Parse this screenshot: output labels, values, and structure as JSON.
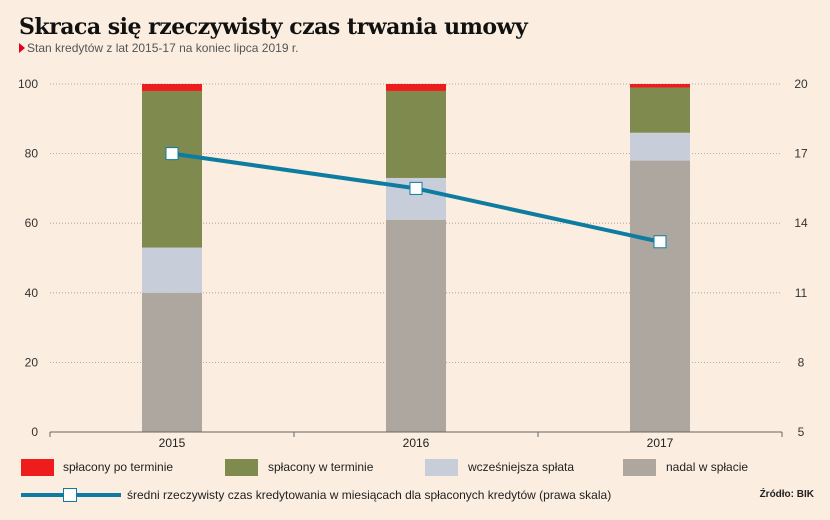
{
  "title": "Skraca się rzeczywisty czas trwania umowy",
  "subtitle": "Stan kredytów z lat 2015-17 na koniec lipca 2019 r.",
  "source": "Źródło: BIK",
  "chart_data": {
    "type": "bar",
    "stacked": true,
    "categories": [
      "2015",
      "2016",
      "2017"
    ],
    "series": [
      {
        "name": "nadal w spłacie",
        "color": "#aea79f",
        "values": [
          40,
          61,
          78
        ]
      },
      {
        "name": "wcześniejsza spłata",
        "color": "#c7cdd9",
        "values": [
          13,
          12,
          8
        ]
      },
      {
        "name": "spłacony w terminie",
        "color": "#7f8a4f",
        "values": [
          45,
          25,
          13
        ]
      },
      {
        "name": "spłacony po terminie",
        "color": "#ee1c1c",
        "values": [
          2,
          2,
          1
        ]
      }
    ],
    "line_series": {
      "name": "średni rzeczywisty czas kredytowania w miesiącach dla spłaconych kredytów (prawa skala)",
      "color": "#0e7ca1",
      "axis": "right",
      "values": [
        17.0,
        15.5,
        13.2
      ]
    },
    "ylim": [
      0,
      100
    ],
    "y_ticks": [
      0,
      20,
      40,
      60,
      80,
      100
    ],
    "y2lim": [
      5,
      20
    ],
    "y2_ticks": [
      "5",
      "8",
      "11",
      "14",
      "17",
      "20"
    ],
    "grid": true
  },
  "legend": {
    "row1": [
      {
        "label": "spłacony po terminie",
        "color": "#ee1c1c"
      },
      {
        "label": "spłacony w terminie",
        "color": "#7f8a4f"
      },
      {
        "label": "wcześniejsza spłata",
        "color": "#c7cdd9"
      },
      {
        "label": "nadal w spłacie",
        "color": "#aea79f"
      }
    ],
    "line_label": "średni rzeczywisty czas kredytowania w miesiącach dla spłaconych kredytów (prawa skala)"
  }
}
